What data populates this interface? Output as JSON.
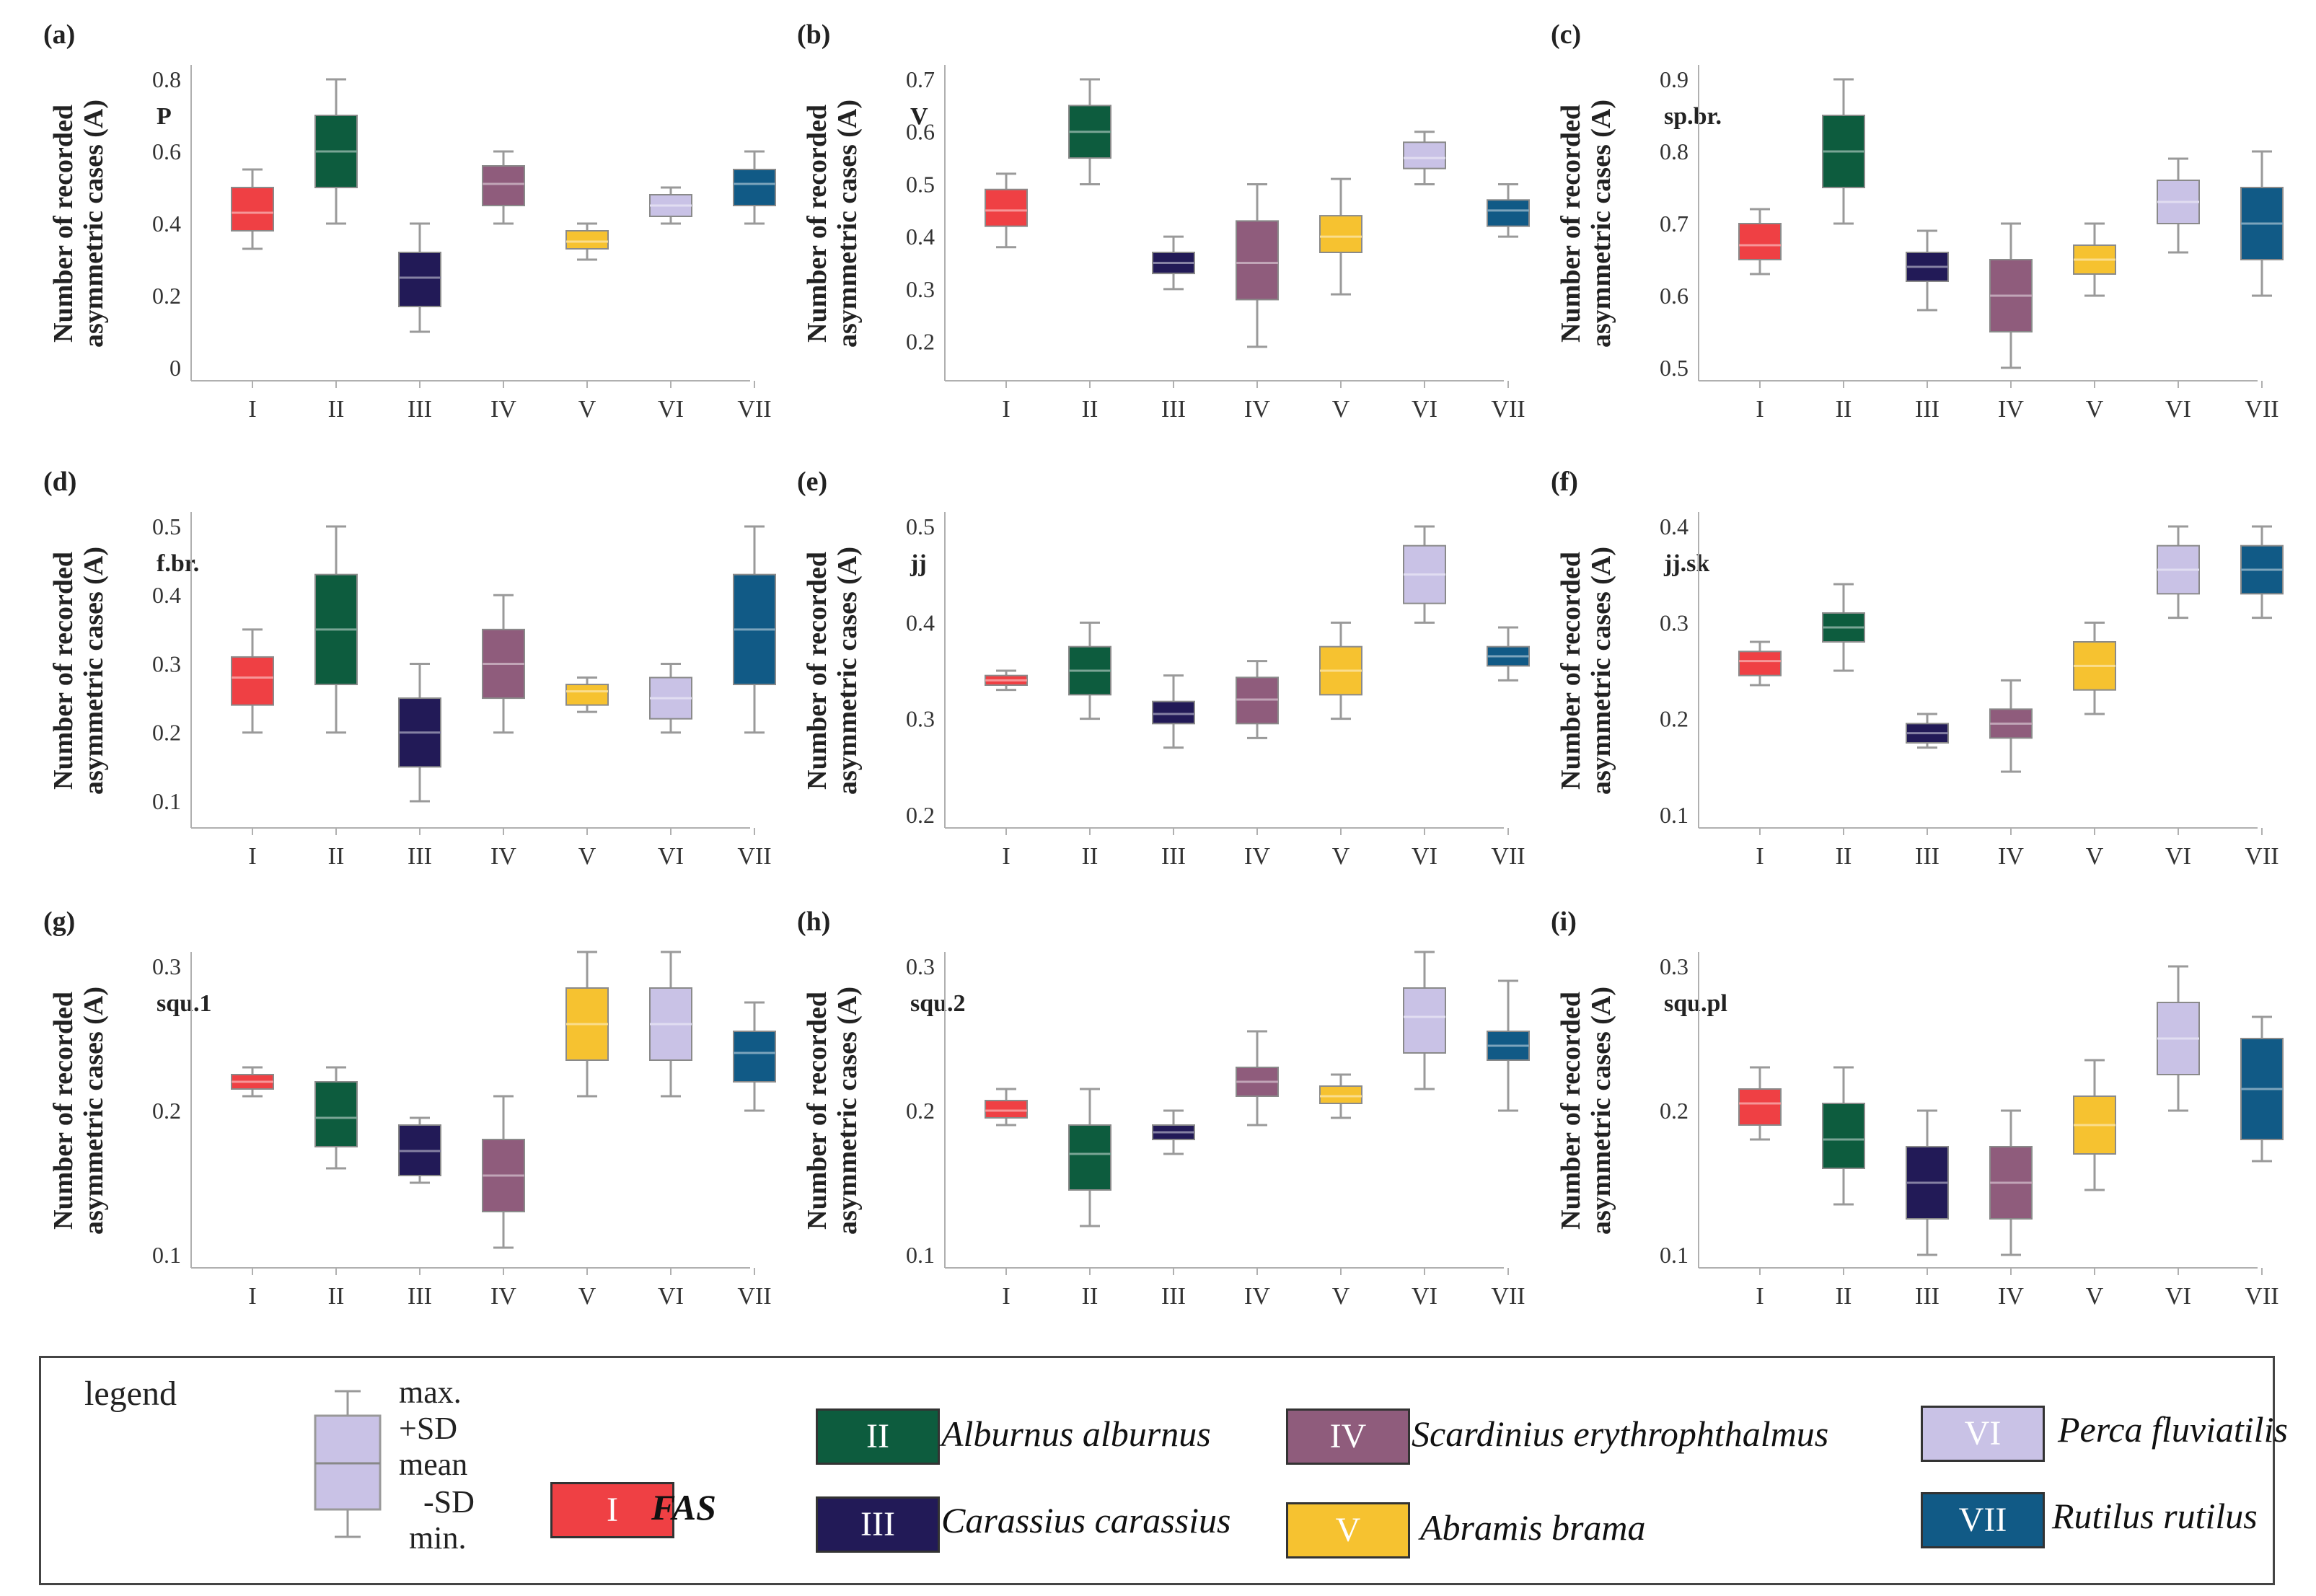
{
  "figure": {
    "ylabel_line1": "Number of recorded",
    "ylabel_line2": "asymmetric cases (A)"
  },
  "colors": {
    "I": "#ef4044",
    "II": "#0d5c3e",
    "III": "#221a57",
    "IV": "#8f5c7c",
    "V": "#f6c230",
    "VI": "#c9c2e6",
    "VII": "#115a86",
    "axis": "#b0b0b0"
  },
  "chart_data": [
    {
      "panel": "(a)",
      "trait": "P",
      "type": "box",
      "categories": [
        "I",
        "II",
        "III",
        "IV",
        "V",
        "VI",
        "VII"
      ],
      "ylim": [
        0,
        0.8
      ],
      "yticks": [
        0,
        0.2,
        0.4,
        0.6,
        0.8
      ],
      "ytick_labels": [
        "0",
        "0.2",
        "0.4",
        "0.6",
        "0.8"
      ],
      "boxes": [
        [
          0.33,
          0.38,
          0.43,
          0.5,
          0.55
        ],
        [
          0.4,
          0.5,
          0.6,
          0.7,
          0.8
        ],
        [
          0.1,
          0.17,
          0.25,
          0.32,
          0.4
        ],
        [
          0.4,
          0.45,
          0.51,
          0.56,
          0.6
        ],
        [
          0.3,
          0.33,
          0.35,
          0.38,
          0.4
        ],
        [
          0.4,
          0.42,
          0.45,
          0.48,
          0.5
        ],
        [
          0.4,
          0.45,
          0.51,
          0.55,
          0.6
        ]
      ]
    },
    {
      "panel": "(b)",
      "trait": "V",
      "type": "box",
      "categories": [
        "I",
        "II",
        "III",
        "IV",
        "V",
        "VI",
        "VII"
      ],
      "ylim": [
        0.15,
        0.7
      ],
      "yticks": [
        0.2,
        0.3,
        0.4,
        0.5,
        0.6,
        0.7
      ],
      "ytick_labels": [
        "0.2",
        "0.3",
        "0.4",
        "0.5",
        "0.6",
        "0.7"
      ],
      "boxes": [
        [
          0.38,
          0.42,
          0.45,
          0.49,
          0.52
        ],
        [
          0.5,
          0.55,
          0.6,
          0.65,
          0.7
        ],
        [
          0.3,
          0.33,
          0.35,
          0.37,
          0.4
        ],
        [
          0.19,
          0.28,
          0.35,
          0.43,
          0.5
        ],
        [
          0.29,
          0.37,
          0.4,
          0.44,
          0.51
        ],
        [
          0.5,
          0.53,
          0.55,
          0.58,
          0.6
        ],
        [
          0.4,
          0.42,
          0.45,
          0.47,
          0.5
        ]
      ]
    },
    {
      "panel": "(c)",
      "trait": "sp.br.",
      "type": "box",
      "categories": [
        "I",
        "II",
        "III",
        "IV",
        "V",
        "VI",
        "VII"
      ],
      "ylim": [
        0.5,
        0.9
      ],
      "yticks": [
        0.5,
        0.6,
        0.7,
        0.8,
        0.9
      ],
      "ytick_labels": [
        "0.5",
        "0.6",
        "0.7",
        "0.8",
        "0.9"
      ],
      "boxes": [
        [
          0.63,
          0.65,
          0.67,
          0.7,
          0.72
        ],
        [
          0.7,
          0.75,
          0.8,
          0.85,
          0.9
        ],
        [
          0.58,
          0.62,
          0.64,
          0.66,
          0.69
        ],
        [
          0.5,
          0.55,
          0.6,
          0.65,
          0.7
        ],
        [
          0.6,
          0.63,
          0.65,
          0.67,
          0.7
        ],
        [
          0.66,
          0.7,
          0.73,
          0.76,
          0.79
        ],
        [
          0.6,
          0.65,
          0.7,
          0.75,
          0.8
        ]
      ]
    },
    {
      "panel": "(d)",
      "trait": "f.br.",
      "type": "box",
      "categories": [
        "I",
        "II",
        "III",
        "IV",
        "V",
        "VI",
        "VII"
      ],
      "ylim": [
        0.08,
        0.5
      ],
      "yticks": [
        0.1,
        0.2,
        0.3,
        0.4,
        0.5
      ],
      "ytick_labels": [
        "0.1",
        "0.2",
        "0.3",
        "0.4",
        "0.5"
      ],
      "boxes": [
        [
          0.2,
          0.24,
          0.28,
          0.31,
          0.35
        ],
        [
          0.2,
          0.27,
          0.35,
          0.43,
          0.5
        ],
        [
          0.1,
          0.15,
          0.2,
          0.25,
          0.3
        ],
        [
          0.2,
          0.25,
          0.3,
          0.35,
          0.4
        ],
        [
          0.23,
          0.24,
          0.26,
          0.27,
          0.28
        ],
        [
          0.2,
          0.22,
          0.25,
          0.28,
          0.3
        ],
        [
          0.2,
          0.27,
          0.35,
          0.43,
          0.5
        ]
      ]
    },
    {
      "panel": "(e)",
      "trait": "jj",
      "type": "box",
      "categories": [
        "I",
        "II",
        "III",
        "IV",
        "V",
        "VI",
        "VII"
      ],
      "ylim": [
        0.2,
        0.5
      ],
      "yticks": [
        0.2,
        0.3,
        0.4,
        0.5
      ],
      "ytick_labels": [
        "0.2",
        "0.3",
        "0.4",
        "0.5"
      ],
      "boxes": [
        [
          0.33,
          0.335,
          0.34,
          0.345,
          0.35
        ],
        [
          0.3,
          0.325,
          0.35,
          0.375,
          0.4
        ],
        [
          0.27,
          0.295,
          0.305,
          0.318,
          0.345
        ],
        [
          0.28,
          0.295,
          0.32,
          0.343,
          0.36
        ],
        [
          0.3,
          0.325,
          0.35,
          0.375,
          0.4
        ],
        [
          0.4,
          0.42,
          0.45,
          0.48,
          0.5
        ],
        [
          0.34,
          0.355,
          0.365,
          0.375,
          0.395
        ]
      ]
    },
    {
      "panel": "(f)",
      "trait": "jj.sk",
      "type": "box",
      "categories": [
        "I",
        "II",
        "III",
        "IV",
        "V",
        "VI",
        "VII"
      ],
      "ylim": [
        0.1,
        0.4
      ],
      "yticks": [
        0.1,
        0.2,
        0.3,
        0.4
      ],
      "ytick_labels": [
        "0.1",
        "0.2",
        "0.3",
        "0.4"
      ],
      "boxes": [
        [
          0.235,
          0.245,
          0.26,
          0.27,
          0.28
        ],
        [
          0.25,
          0.28,
          0.295,
          0.31,
          0.34
        ],
        [
          0.17,
          0.175,
          0.185,
          0.195,
          0.205
        ],
        [
          0.145,
          0.18,
          0.195,
          0.21,
          0.24
        ],
        [
          0.205,
          0.23,
          0.255,
          0.28,
          0.3
        ],
        [
          0.305,
          0.33,
          0.355,
          0.38,
          0.4
        ],
        [
          0.305,
          0.33,
          0.355,
          0.38,
          0.4
        ]
      ]
    },
    {
      "panel": "(g)",
      "trait": "squ.1",
      "type": "box",
      "categories": [
        "I",
        "II",
        "III",
        "IV",
        "V",
        "VI",
        "VII"
      ],
      "ylim": [
        0.1,
        0.3
      ],
      "yticks": [
        0.1,
        0.2,
        0.3
      ],
      "ytick_labels": [
        "0.1",
        "0.2",
        "0.3"
      ],
      "boxes": [
        [
          0.21,
          0.215,
          0.22,
          0.225,
          0.23
        ],
        [
          0.16,
          0.175,
          0.195,
          0.22,
          0.23
        ],
        [
          0.15,
          0.155,
          0.172,
          0.19,
          0.195
        ],
        [
          0.105,
          0.13,
          0.155,
          0.18,
          0.21
        ],
        [
          0.21,
          0.235,
          0.26,
          0.285,
          0.31
        ],
        [
          0.21,
          0.235,
          0.26,
          0.285,
          0.31
        ],
        [
          0.2,
          0.22,
          0.24,
          0.255,
          0.275
        ]
      ]
    },
    {
      "panel": "(h)",
      "trait": "squ.2",
      "type": "box",
      "categories": [
        "I",
        "II",
        "III",
        "IV",
        "V",
        "VI",
        "VII"
      ],
      "ylim": [
        0.1,
        0.3
      ],
      "yticks": [
        0.1,
        0.2,
        0.3
      ],
      "ytick_labels": [
        "0.1",
        "0.2",
        "0.3"
      ],
      "boxes": [
        [
          0.19,
          0.195,
          0.2,
          0.207,
          0.215
        ],
        [
          0.12,
          0.145,
          0.17,
          0.19,
          0.215
        ],
        [
          0.17,
          0.18,
          0.185,
          0.19,
          0.2
        ],
        [
          0.19,
          0.21,
          0.22,
          0.23,
          0.255
        ],
        [
          0.195,
          0.205,
          0.21,
          0.217,
          0.225
        ],
        [
          0.215,
          0.24,
          0.265,
          0.285,
          0.31
        ],
        [
          0.2,
          0.235,
          0.245,
          0.255,
          0.29
        ]
      ]
    },
    {
      "panel": "(i)",
      "trait": "squ.pl",
      "type": "box",
      "categories": [
        "I",
        "II",
        "III",
        "IV",
        "V",
        "VI",
        "VII"
      ],
      "ylim": [
        0.1,
        0.3
      ],
      "yticks": [
        0.1,
        0.2,
        0.3
      ],
      "ytick_labels": [
        "0.1",
        "0.2",
        "0.3"
      ],
      "boxes": [
        [
          0.18,
          0.19,
          0.205,
          0.215,
          0.23
        ],
        [
          0.135,
          0.16,
          0.18,
          0.205,
          0.23
        ],
        [
          0.1,
          0.125,
          0.15,
          0.175,
          0.2
        ],
        [
          0.1,
          0.125,
          0.15,
          0.175,
          0.2
        ],
        [
          0.145,
          0.17,
          0.19,
          0.21,
          0.235
        ],
        [
          0.2,
          0.225,
          0.25,
          0.275,
          0.3
        ],
        [
          0.165,
          0.18,
          0.215,
          0.25,
          0.265
        ]
      ]
    }
  ],
  "legend": {
    "title": "legend",
    "key": {
      "max": "max.",
      "plus_sd": "+SD",
      "mean": "mean",
      "minus_sd": "-SD",
      "min": "min."
    },
    "entries": [
      {
        "code": "I",
        "name": "FAS"
      },
      {
        "code": "II",
        "name": "Alburnus alburnus"
      },
      {
        "code": "III",
        "name": "Carassius carassius"
      },
      {
        "code": "IV",
        "name": "Scardinius erythrophthalmus"
      },
      {
        "code": "V",
        "name": "Abramis brama"
      },
      {
        "code": "VI",
        "name": "Perca fluviatilis"
      },
      {
        "code": "VII",
        "name": "Rutilus rutilus"
      }
    ]
  }
}
